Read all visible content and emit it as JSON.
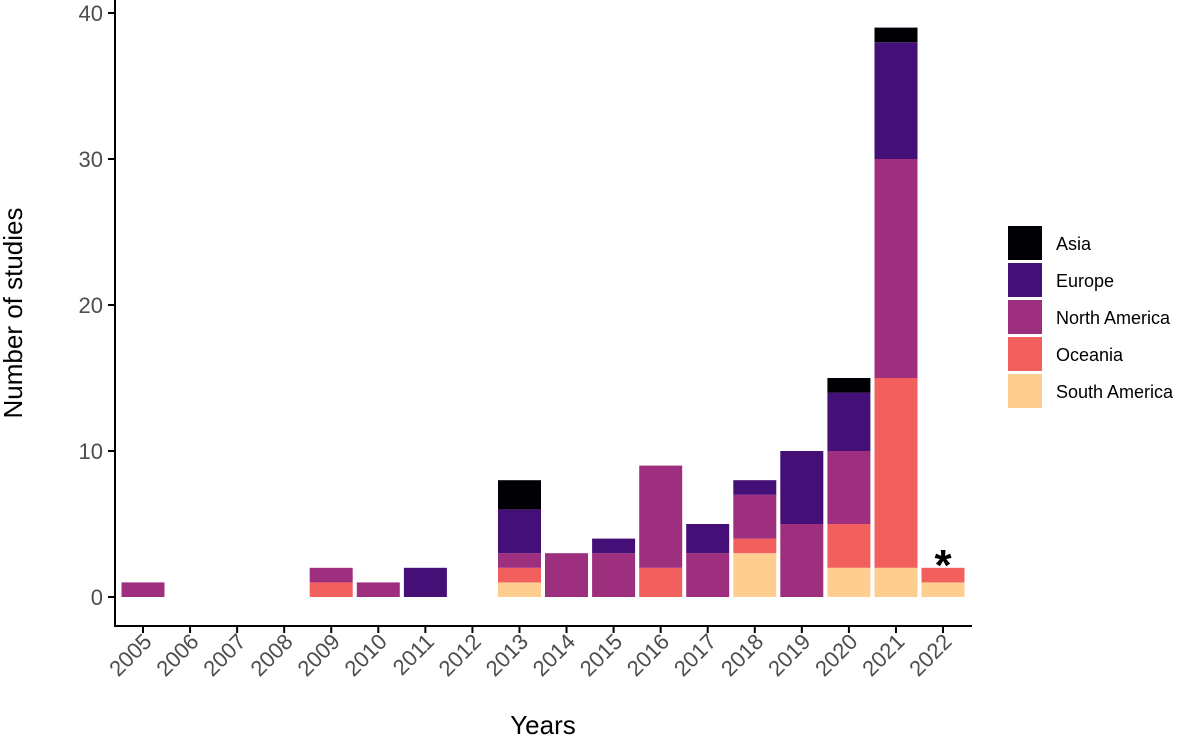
{
  "chart_data": {
    "type": "bar",
    "stacked": true,
    "title": "",
    "xlabel": "Years",
    "ylabel": "Number of studies",
    "ylim": [
      0,
      40
    ],
    "yticks": [
      0,
      10,
      20,
      30,
      40
    ],
    "grid": false,
    "legend_position": "right",
    "categories": [
      "2005",
      "2006",
      "2007",
      "2008",
      "2009",
      "2010",
      "2011",
      "2012",
      "2013",
      "2014",
      "2015",
      "2016",
      "2017",
      "2018",
      "2019",
      "2020",
      "2021",
      "2022"
    ],
    "series": [
      {
        "name": "South America",
        "color": "#FECE91",
        "values": [
          0,
          0,
          0,
          0,
          0,
          0,
          0,
          0,
          1,
          0,
          0,
          0,
          0,
          3,
          0,
          2,
          2,
          1
        ]
      },
      {
        "name": "Oceania",
        "color": "#F1605D",
        "values": [
          0,
          0,
          0,
          0,
          1,
          0,
          0,
          0,
          1,
          0,
          0,
          2,
          0,
          1,
          0,
          3,
          13,
          1
        ]
      },
      {
        "name": "North America",
        "color": "#9E2F7F",
        "values": [
          1,
          0,
          0,
          0,
          1,
          1,
          0,
          0,
          1,
          3,
          3,
          7,
          3,
          3,
          5,
          5,
          15,
          0
        ]
      },
      {
        "name": "Europe",
        "color": "#440F76",
        "values": [
          0,
          0,
          0,
          0,
          0,
          0,
          2,
          0,
          3,
          0,
          1,
          0,
          2,
          1,
          5,
          4,
          8,
          0
        ]
      },
      {
        "name": "Asia",
        "color": "#000004",
        "values": [
          0,
          0,
          0,
          0,
          0,
          0,
          0,
          0,
          2,
          0,
          0,
          0,
          0,
          0,
          0,
          1,
          1,
          0
        ]
      }
    ],
    "legend_order": [
      "Asia",
      "Europe",
      "North America",
      "Oceania",
      "South America"
    ],
    "annotations": [
      {
        "category": "2022",
        "text": "*"
      }
    ]
  }
}
